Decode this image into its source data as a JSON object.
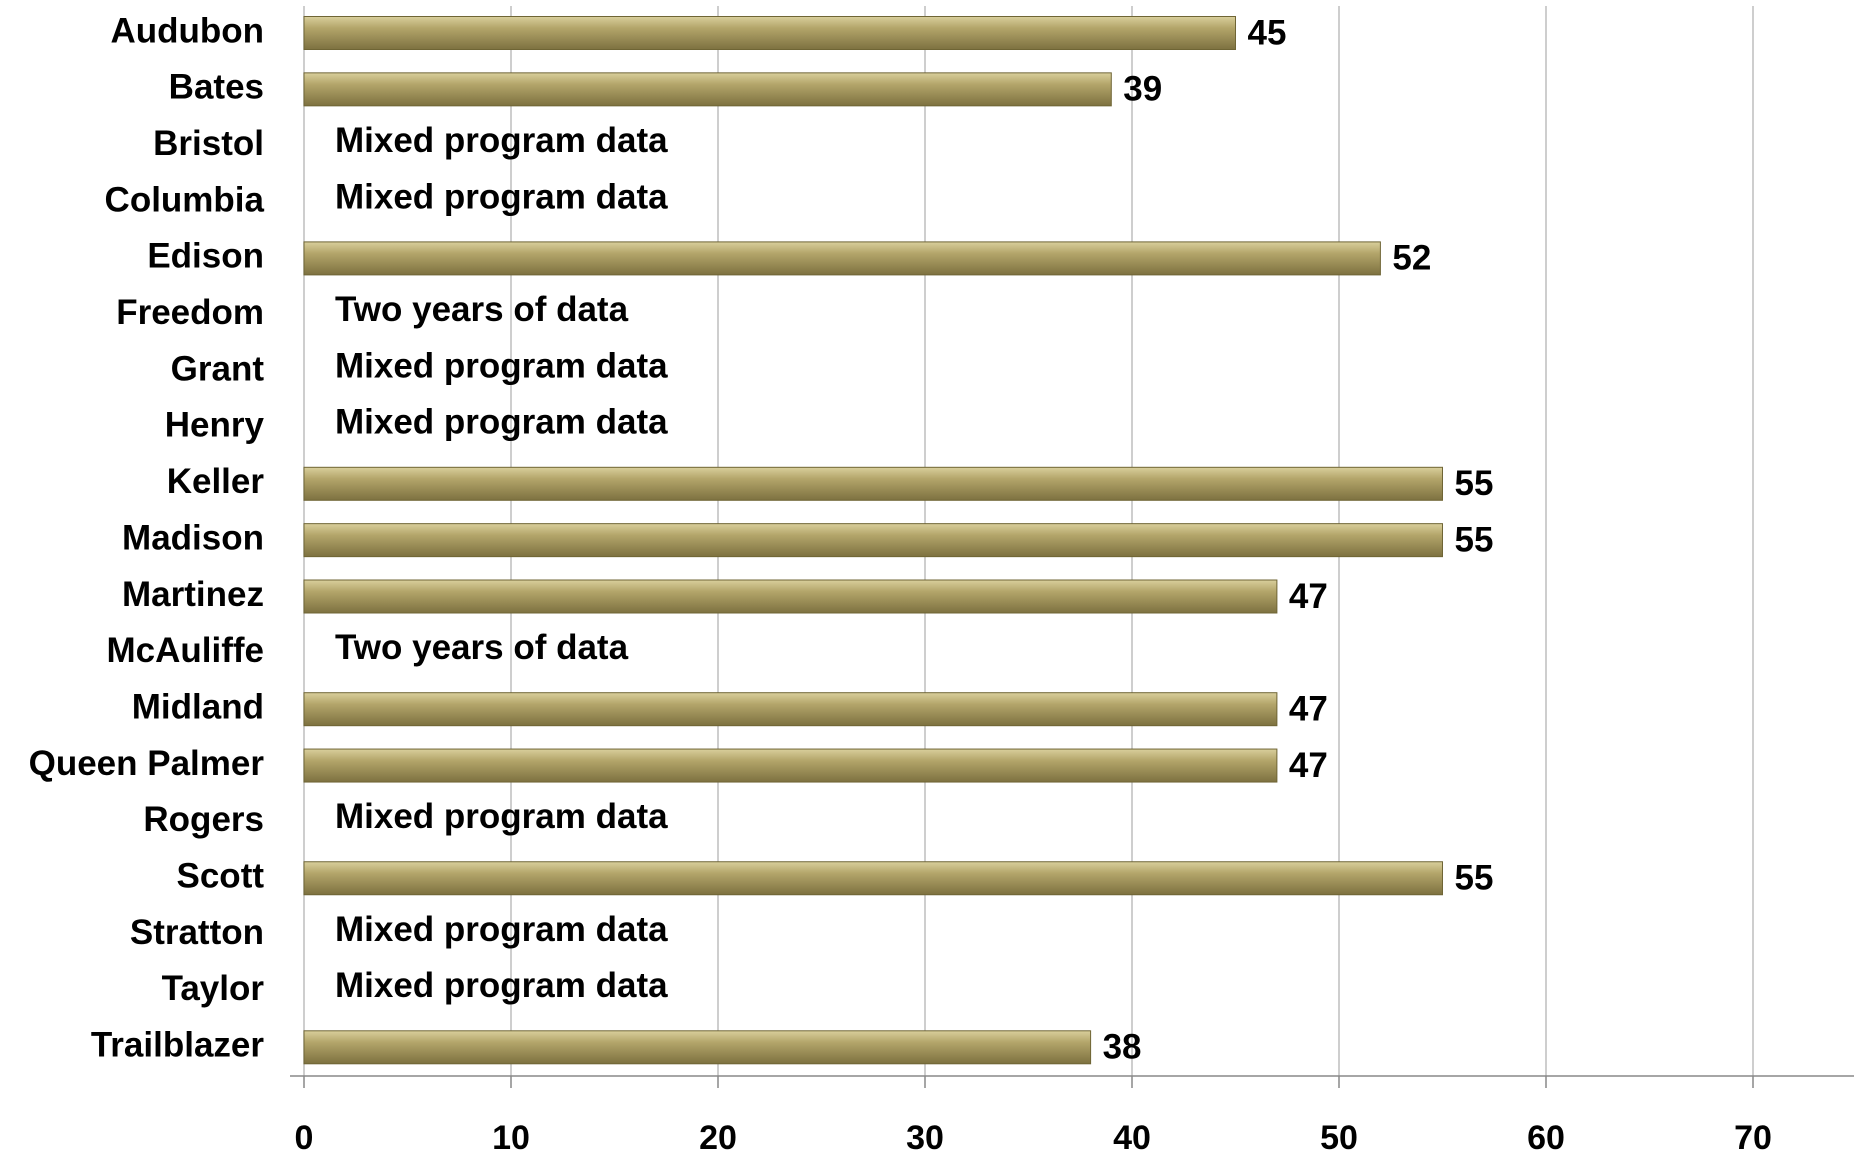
{
  "chart_data": {
    "type": "bar",
    "orientation": "horizontal",
    "categories": [
      "Audubon",
      "Bates",
      "Bristol",
      "Columbia",
      "Edison",
      "Freedom",
      "Grant",
      "Henry",
      "Keller",
      "Madison",
      "Martinez",
      "McAuliffe",
      "Midland",
      "Queen Palmer",
      "Rogers",
      "Scott",
      "Stratton",
      "Taylor",
      "Trailblazer"
    ],
    "values": [
      45,
      39,
      null,
      null,
      52,
      null,
      null,
      null,
      55,
      55,
      47,
      null,
      47,
      47,
      null,
      55,
      null,
      null,
      38
    ],
    "value_labels": [
      null,
      null,
      "Mixed program data",
      "Mixed program data",
      null,
      "Two years of data",
      "Mixed program data",
      "Mixed program data",
      null,
      null,
      null,
      "Two years of data",
      null,
      null,
      "Mixed program data",
      null,
      "Mixed program data",
      "Mixed program data",
      null
    ],
    "color": "#b3a56a",
    "xlim": [
      0,
      70
    ],
    "xticks": [
      0,
      10,
      20,
      30,
      40,
      50,
      60,
      70
    ],
    "grid": true
  }
}
